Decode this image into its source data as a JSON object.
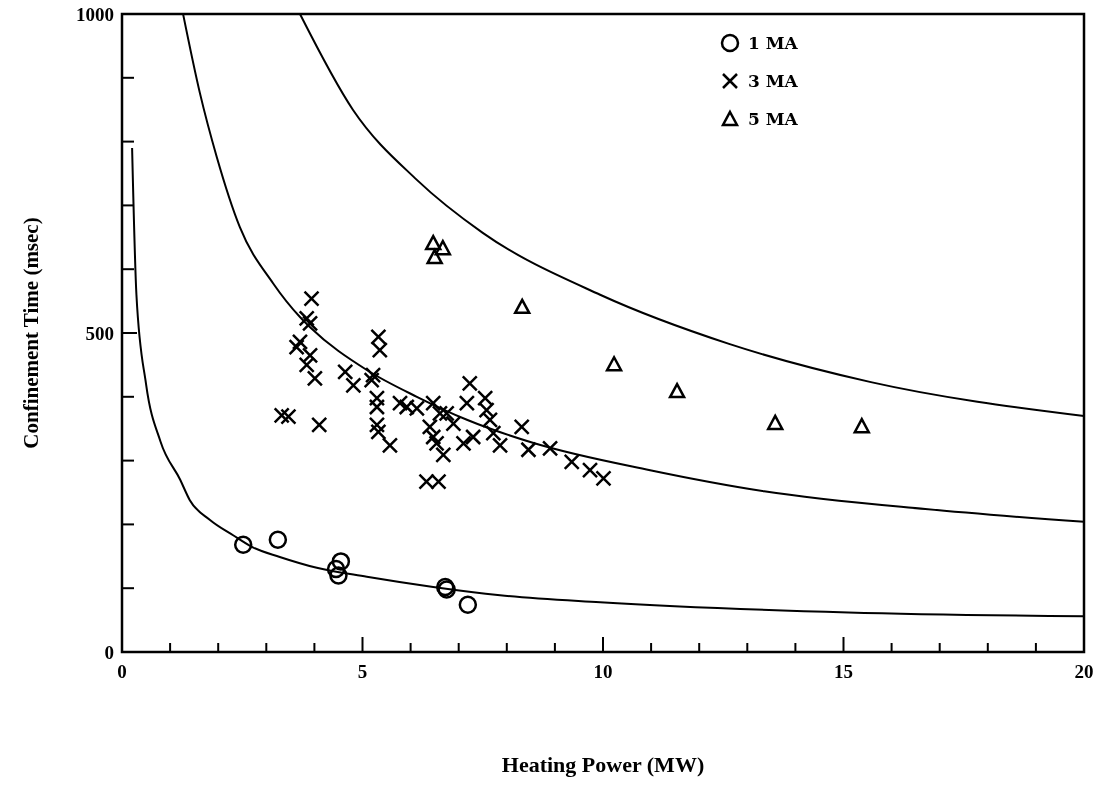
{
  "chart_data": {
    "type": "scatter",
    "xlabel": "Heating Power (MW)",
    "ylabel": "Confinement Time (msec)",
    "xlim": [
      0,
      20
    ],
    "ylim": [
      0,
      1000
    ],
    "xticks": [
      0,
      {
        "value": 1,
        "label": null
      },
      {
        "value": 2,
        "label": null
      },
      {
        "value": 3,
        "label": null
      },
      {
        "value": 4,
        "label": null
      },
      5,
      {
        "value": 6,
        "label": null
      },
      {
        "value": 7,
        "label": null
      },
      {
        "value": 8,
        "label": null
      },
      {
        "value": 9,
        "label": null
      },
      10,
      {
        "value": 11,
        "label": null
      },
      {
        "value": 12,
        "label": null
      },
      {
        "value": 13,
        "label": null
      },
      {
        "value": 14,
        "label": null
      },
      15,
      {
        "value": 16,
        "label": null
      },
      {
        "value": 17,
        "label": null
      },
      {
        "value": 18,
        "label": null
      },
      {
        "value": 19,
        "label": null
      },
      20
    ],
    "yticks": [
      0,
      {
        "value": 100,
        "label": null
      },
      {
        "value": 200,
        "label": null
      },
      {
        "value": 300,
        "label": null
      },
      {
        "value": 400,
        "label": null
      },
      500,
      {
        "value": 600,
        "label": null
      },
      {
        "value": 700,
        "label": null
      },
      {
        "value": 800,
        "label": null
      },
      {
        "value": 900,
        "label": null
      },
      1000
    ],
    "legend": "top right",
    "grid": false,
    "series": [
      {
        "name": "1 MA",
        "color": "#000000",
        "marker": "circle",
        "x": [
          2.52,
          3.24,
          4.45,
          4.5,
          4.55,
          6.72,
          6.75,
          7.19
        ],
        "values": [
          168,
          176,
          130,
          120,
          142,
          102,
          98,
          74
        ]
      },
      {
        "name": "3 MA",
        "color": "#000000",
        "marker": "cross",
        "x": [
          3.94,
          3.84,
          3.91,
          3.7,
          3.63,
          3.91,
          3.84,
          4.01,
          3.32,
          3.46,
          4.1,
          5.33,
          5.36,
          4.64,
          4.81,
          5.22,
          5.3,
          5.3,
          5.3,
          5.33,
          5.57,
          5.78,
          5.92,
          6.47,
          6.61,
          6.75,
          6.4,
          6.47,
          6.54,
          6.68,
          6.33,
          6.58,
          7.23,
          7.17,
          7.55,
          7.58,
          7.1,
          7.65,
          7.72,
          7.86,
          8.31,
          8.45,
          8.9,
          9.35,
          9.73,
          10.01,
          6.89,
          6.13,
          5.19,
          7.3
        ],
        "values": [
          554,
          523,
          515,
          486,
          478,
          465,
          450,
          429,
          371,
          369,
          356,
          494,
          473,
          439,
          418,
          434,
          398,
          384,
          356,
          345,
          324,
          390,
          384,
          390,
          374,
          374,
          353,
          337,
          327,
          309,
          267,
          267,
          421,
          390,
          398,
          379,
          327,
          364,
          343,
          324,
          353,
          317,
          319,
          298,
          285,
          272,
          358,
          382,
          426,
          337
        ]
      },
      {
        "name": "5 MA",
        "color": "#000000",
        "marker": "triangle",
        "x": [
          6.47,
          6.67,
          6.5,
          8.32,
          10.23,
          11.54,
          13.58,
          15.38
        ],
        "values": [
          641,
          633,
          619,
          541,
          451,
          409,
          359,
          354
        ]
      },
      {
        "type": "line",
        "color": "#000000",
        "marker": "none",
        "line_style": "solid",
        "x": [
          0.21,
          0.3,
          0.5,
          0.8,
          1.21,
          1.41,
          1.83,
          2.31,
          2.72,
          3.28,
          4.05,
          5.09,
          6.47,
          7.86,
          9.94,
          15.1,
          20
        ],
        "values": [
          790,
          560,
          420,
          330,
          270,
          238,
          207,
          183,
          164,
          149,
          132,
          118,
          102,
          89,
          78,
          62,
          56
        ]
      },
      {
        "type": "line",
        "color": "#000000",
        "marker": "none",
        "line_style": "solid",
        "x": [
          1.27,
          1.62,
          1.97,
          2.45,
          3.14,
          3.7,
          3.91,
          5.09,
          6.13,
          7.17,
          8.54,
          10.98,
          13.35,
          16.7,
          20
        ],
        "values": [
          1000,
          876,
          776,
          666,
          578,
          525,
          509,
          442,
          400,
          364,
          328,
          285,
          252,
          224,
          204
        ]
      },
      {
        "type": "line",
        "color": "#000000",
        "marker": "none",
        "line_style": "solid",
        "x": [
          3.7,
          4.8,
          6.13,
          7.5,
          9.94,
          12.62,
          15.57,
          20
        ],
        "values": [
          1000,
          850,
          740,
          657,
          560,
          483,
          423,
          370
        ]
      }
    ]
  }
}
